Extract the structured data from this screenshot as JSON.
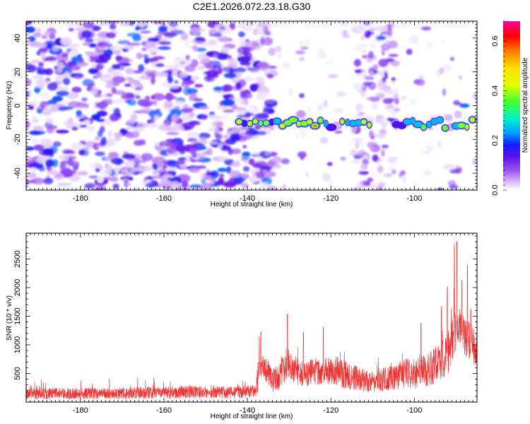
{
  "figure": {
    "title": "C2E1.2026.072.23.18.G30"
  },
  "chart_data": [
    {
      "type": "heatmap",
      "title": "C2E1.2026.072.23.18.G30",
      "xlabel": "Height of straight line (km)",
      "ylabel": "Frequency (Hz)",
      "xlim": [
        -193,
        -85
      ],
      "ylim": [
        -50,
        50
      ],
      "xticks": [
        -180,
        -160,
        -140,
        -120,
        -100
      ],
      "xtick_labels": [
        "-180",
        "-160",
        "-140",
        "-120",
        "-100"
      ],
      "yticks": [
        -40,
        -20,
        0,
        20,
        40
      ],
      "ytick_labels": [
        "-40",
        "-20",
        "0",
        "20",
        "40"
      ],
      "colorbar": {
        "label": "Normalized spectral amplitude",
        "range": [
          0,
          0.68
        ],
        "ticks": [
          0,
          0.2,
          0.4,
          0.6
        ],
        "tick_labels": [
          "0.0",
          "0.2",
          "0.4",
          "0.6"
        ],
        "colors": [
          "#ffffff",
          "#d9b8f7",
          "#9a4ff0",
          "#5a10e6",
          "#1020ff",
          "#00a0ff",
          "#00f0d0",
          "#40ff30",
          "#e0ff00",
          "#ffe000",
          "#ff8000",
          "#ff0000",
          "#ff0099"
        ]
      },
      "features": {
        "noise_region_x": [
          -193,
          -140
        ],
        "signal_band": {
          "x_range": [
            -142,
            -86
          ],
          "center_frequency_hz": -10,
          "gap_x": [
            -110,
            -105
          ],
          "peak_amplitude": 0.6
        },
        "isolated_spots": [
          {
            "x": -147,
            "f": 10
          },
          {
            "x": -146,
            "f": -38
          },
          {
            "x": -151,
            "f": -25
          },
          {
            "x": -108,
            "f": 40
          },
          {
            "x": -88,
            "f": 0
          }
        ]
      }
    },
    {
      "type": "line",
      "xlabel": "Height of straight line (km)",
      "ylabel": "SNR (10 * v/v)",
      "xlim": [
        -193,
        -85
      ],
      "ylim": [
        0,
        2950
      ],
      "xticks": [
        -180,
        -160,
        -140,
        -120,
        -100
      ],
      "xtick_labels": [
        "-180",
        "-160",
        "-140",
        "-120",
        "-100"
      ],
      "yticks": [
        500,
        1000,
        1500,
        2000,
        2500
      ],
      "ytick_labels": [
        "500",
        "1000",
        "1500",
        "2000",
        "2500"
      ],
      "color": "#ee3333",
      "series": [
        {
          "name": "SNR",
          "x": [
            -193,
            -185,
            -175,
            -165,
            -155,
            -145,
            -140,
            -138,
            -137.5,
            -136.5,
            -134,
            -132,
            -130.5,
            -129.5,
            -127,
            -125,
            -123,
            -121,
            -119.5,
            -118,
            -116,
            -114,
            -112,
            -110,
            -108,
            -106,
            -104,
            -102,
            -100,
            -98,
            -96,
            -94,
            -92,
            -90.5,
            -89.5,
            -88.5,
            -87.5,
            -86,
            -85
          ],
          "baseline": [
            150,
            150,
            150,
            160,
            170,
            175,
            175,
            200,
            450,
            700,
            380,
            450,
            700,
            600,
            500,
            500,
            550,
            560,
            560,
            520,
            460,
            430,
            380,
            350,
            390,
            420,
            450,
            500,
            500,
            540,
            600,
            700,
            850,
            1150,
            1350,
            1250,
            1100,
            1000,
            900
          ],
          "spread": [
            180,
            180,
            180,
            190,
            200,
            200,
            200,
            220,
            500,
            400,
            380,
            450,
            550,
            450,
            430,
            430,
            450,
            480,
            500,
            480,
            430,
            400,
            360,
            340,
            380,
            400,
            430,
            480,
            480,
            520,
            560,
            620,
            700,
            700,
            800,
            700,
            650,
            650,
            650
          ],
          "spikes": [
            [
              -136.8,
              1260
            ],
            [
              -130.4,
              1550
            ],
            [
              -126.6,
              1250
            ],
            [
              -121.8,
              1340
            ],
            [
              -98.4,
              1400
            ],
            [
              -93.5,
              1700
            ],
            [
              -92.1,
              2050
            ],
            [
              -90.4,
              2800
            ],
            [
              -89.8,
              2900
            ],
            [
              -88.6,
              2200
            ],
            [
              -87.3,
              2450
            ],
            [
              -86.5,
              1650
            ]
          ]
        }
      ]
    }
  ]
}
